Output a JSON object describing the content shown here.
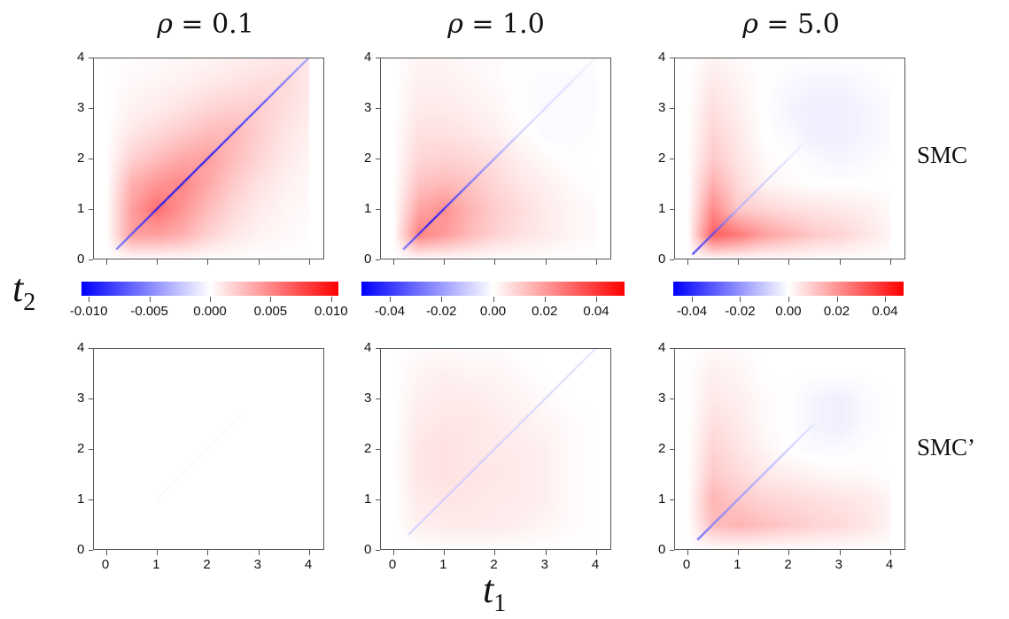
{
  "row_labels": [
    "SMC",
    "SMC’"
  ],
  "axis_labels": {
    "x": "t",
    "x_sub": "1",
    "y": "t",
    "y_sub": "2"
  },
  "colors": {
    "negative": "#0000ff",
    "zero": "#ffffff",
    "positive": "#ff0000",
    "frame": "#555555"
  },
  "colorbars": [
    {
      "range": [
        -0.0106,
        0.0106
      ],
      "ticks": [
        -0.01,
        -0.005,
        0,
        0.005,
        0.01
      ],
      "tick_labels": [
        "-0.010",
        "-0.005",
        "0.000",
        "0.005",
        "0.010"
      ]
    },
    {
      "range": [
        -0.051,
        0.051
      ],
      "ticks": [
        -0.04,
        -0.02,
        0,
        0.02,
        0.04
      ],
      "tick_labels": [
        "-0.04",
        "-0.02",
        "0.00",
        "0.02",
        "0.04"
      ]
    },
    {
      "range": [
        -0.0477,
        0.0477
      ],
      "ticks": [
        -0.04,
        -0.02,
        0,
        0.02,
        0.04
      ],
      "tick_labels": [
        "-0.04",
        "-0.02",
        "0.00",
        "0.02",
        "0.04"
      ]
    }
  ],
  "columns": [
    {
      "rho_symbol": "ρ",
      "rho_text": " = 0.1"
    },
    {
      "rho_symbol": "ρ",
      "rho_text": " = 1.0"
    },
    {
      "rho_symbol": "ρ",
      "rho_text": " = 5.0"
    }
  ],
  "chart_data": [
    {
      "type": "heatmap",
      "row": "SMC",
      "rho": 0.1,
      "col": 0,
      "xlim": [
        -0.26,
        4.3
      ],
      "ylim": [
        0,
        4
      ],
      "xticks": [
        0,
        1,
        2,
        3,
        4
      ],
      "xtick_labels": [],
      "yticks": [
        0,
        1,
        2,
        3,
        4
      ],
      "ytick_labels": [
        "0",
        "1",
        "2",
        "3",
        "4"
      ],
      "grid_t": [
        0,
        0.5,
        1,
        1.5,
        2,
        2.5,
        3,
        3.5,
        4
      ],
      "values": [
        [
          0,
          0,
          0,
          0,
          0,
          0,
          0,
          0,
          0
        ],
        [
          0,
          0.004,
          0.004,
          0.0033,
          0.0019,
          0.001,
          0.0005,
          0.0003,
          0.0001
        ],
        [
          0,
          0.004,
          0.006,
          0.0044,
          0.0028,
          0.0016,
          0.0008,
          0.0004,
          0.0002
        ],
        [
          0,
          0.0033,
          0.0044,
          0.005,
          0.0036,
          0.0022,
          0.0012,
          0.0006,
          0.0003
        ],
        [
          0,
          0.0019,
          0.0028,
          0.0036,
          0.004,
          0.0028,
          0.0017,
          0.0009,
          0.0004
        ],
        [
          0,
          0.001,
          0.0016,
          0.0022,
          0.0028,
          0.003,
          0.002,
          0.0011,
          0.0006
        ],
        [
          0,
          0.0005,
          0.0008,
          0.0012,
          0.0017,
          0.002,
          0.002,
          0.0014,
          0.0008
        ],
        [
          0,
          0.0003,
          0.0004,
          0.0006,
          0.0009,
          0.0011,
          0.0014,
          0.0015,
          0.001
        ],
        [
          0,
          0.0001,
          0.0002,
          0.0003,
          0.0004,
          0.0006,
          0.0008,
          0.001,
          0.001
        ]
      ],
      "diagonal": {
        "t": [
          0.2,
          1,
          2,
          3,
          4
        ],
        "values": [
          -0.006,
          -0.01,
          -0.01,
          -0.008,
          -0.004
        ]
      }
    },
    {
      "type": "heatmap",
      "row": "SMC",
      "rho": 1.0,
      "col": 1,
      "xlim": [
        -0.26,
        4.3
      ],
      "ylim": [
        0,
        4
      ],
      "xticks": [
        0,
        1,
        2,
        3,
        4
      ],
      "xtick_labels": [],
      "yticks": [
        0,
        1,
        2,
        3,
        4
      ],
      "ytick_labels": [
        "0",
        "1",
        "2",
        "3",
        "4"
      ],
      "grid_t": [
        0,
        0.5,
        1,
        1.5,
        2,
        2.5,
        3,
        3.5,
        4
      ],
      "values": [
        [
          0,
          0,
          0,
          0,
          0,
          0,
          0,
          0,
          0
        ],
        [
          0,
          0.025,
          0.02,
          0.014,
          0.009,
          0.006,
          0.004,
          0.002,
          0.001
        ],
        [
          0,
          0.018,
          0.022,
          0.015,
          0.01,
          0.007,
          0.004,
          0.002,
          0.001
        ],
        [
          0,
          0.012,
          0.014,
          0.012,
          0.008,
          0.005,
          0.003,
          0.001,
          0
        ],
        [
          0,
          0.008,
          0.009,
          0.008,
          0.006,
          0.003,
          0.001,
          0,
          0
        ],
        [
          0,
          0.006,
          0.006,
          0.005,
          0.003,
          0.001,
          -0.001,
          -0.001,
          0
        ],
        [
          0,
          0.004,
          0.004,
          0.003,
          0.002,
          0,
          -0.001,
          -0.001,
          -0.001
        ],
        [
          0,
          0.003,
          0.003,
          0.002,
          0.001,
          0,
          -0.001,
          -0.001,
          -0.001
        ],
        [
          0,
          0.002,
          0.002,
          0.001,
          0.001,
          0,
          0,
          0,
          0
        ]
      ],
      "diagonal": {
        "t": [
          0.2,
          0.75,
          1.5,
          2.5,
          4
        ],
        "values": [
          -0.03,
          -0.05,
          -0.03,
          -0.01,
          -0.003
        ]
      }
    },
    {
      "type": "heatmap",
      "row": "SMC",
      "rho": 5.0,
      "col": 2,
      "xlim": [
        -0.26,
        4.3
      ],
      "ylim": [
        0,
        4
      ],
      "xticks": [
        0,
        1,
        2,
        3,
        4
      ],
      "xtick_labels": [],
      "yticks": [
        0,
        1,
        2,
        3,
        4
      ],
      "ytick_labels": [
        "0",
        "1",
        "2",
        "3",
        "4"
      ],
      "grid_t": [
        0,
        0.5,
        1,
        1.5,
        2,
        2.5,
        3,
        3.5,
        4
      ],
      "values": [
        [
          0,
          0,
          0,
          0,
          0,
          0,
          0,
          0,
          0
        ],
        [
          0,
          0.03,
          0.025,
          0.018,
          0.014,
          0.01,
          0.008,
          0.005,
          0.002
        ],
        [
          0,
          0.022,
          0.01,
          0.008,
          0.006,
          0.005,
          0.004,
          0.003,
          0.001
        ],
        [
          0,
          0.015,
          0.007,
          0.002,
          0.001,
          0,
          0,
          0,
          0
        ],
        [
          0,
          0.01,
          0.005,
          0.001,
          0,
          -0.001,
          -0.002,
          -0.001,
          0
        ],
        [
          0,
          0.008,
          0.004,
          0,
          -0.001,
          -0.003,
          -0.003,
          -0.002,
          -0.001
        ],
        [
          0,
          0.006,
          0.003,
          0,
          -0.002,
          -0.003,
          -0.003,
          -0.002,
          -0.001
        ],
        [
          0,
          0.004,
          0.002,
          0,
          -0.001,
          -0.002,
          -0.002,
          -0.001,
          0
        ],
        [
          0,
          0.002,
          0.001,
          0,
          0,
          0,
          0,
          0,
          0
        ]
      ],
      "diagonal": {
        "t": [
          0.1,
          0.5,
          1,
          2,
          2.5
        ],
        "values": [
          -0.04,
          -0.035,
          -0.015,
          -0.005,
          -0.002
        ]
      }
    },
    {
      "type": "heatmap",
      "row": "SMC’",
      "rho": 0.1,
      "col": 0,
      "xlim": [
        -0.26,
        4.3
      ],
      "ylim": [
        0,
        4
      ],
      "xticks": [
        0,
        1,
        2,
        3,
        4
      ],
      "xtick_labels": [
        "0",
        "1",
        "2",
        "3",
        "4"
      ],
      "yticks": [
        0,
        1,
        2,
        3,
        4
      ],
      "ytick_labels": [
        "0",
        "1",
        "2",
        "3",
        "4"
      ],
      "grid_t": [
        0,
        0.5,
        1,
        1.5,
        2,
        2.5,
        3,
        3.5,
        4
      ],
      "values": [
        [
          0,
          0,
          0,
          0,
          0,
          0,
          0,
          0,
          0
        ],
        [
          0,
          0,
          0,
          0,
          0,
          0,
          0,
          0,
          0
        ],
        [
          0,
          0,
          0,
          0,
          0,
          0,
          0,
          0,
          0
        ],
        [
          0,
          0,
          0,
          0,
          0,
          0,
          0,
          0,
          0
        ],
        [
          0,
          0,
          0,
          0,
          0,
          0,
          0,
          0,
          0
        ],
        [
          0,
          0,
          0,
          0,
          0,
          0,
          0,
          0,
          0
        ],
        [
          0,
          0,
          0,
          0,
          0,
          0,
          0,
          0,
          0
        ],
        [
          0,
          0,
          0,
          0,
          0,
          0,
          0,
          0,
          0
        ],
        [
          0,
          0,
          0,
          0,
          0,
          0,
          0,
          0,
          0
        ]
      ],
      "diagonal": {
        "t": [
          1,
          2.7
        ],
        "values": [
          -0.0003,
          -0.0003
        ]
      }
    },
    {
      "type": "heatmap",
      "row": "SMC’",
      "rho": 1.0,
      "col": 1,
      "xlim": [
        -0.26,
        4.3
      ],
      "ylim": [
        0,
        4
      ],
      "xticks": [
        0,
        1,
        2,
        3,
        4
      ],
      "xtick_labels": [
        "0",
        "1",
        "2",
        "3",
        "4"
      ],
      "yticks": [
        0,
        1,
        2,
        3,
        4
      ],
      "ytick_labels": [
        "0",
        "1",
        "2",
        "3",
        "4"
      ],
      "grid_t": [
        0,
        0.5,
        1,
        1.5,
        2,
        2.5,
        3,
        3.5,
        4
      ],
      "values": [
        [
          0,
          0,
          0,
          0,
          0,
          0,
          0,
          0,
          0
        ],
        [
          0,
          0.003,
          0.004,
          0.004,
          0.004,
          0.003,
          0.002,
          0.001,
          0
        ],
        [
          0,
          0.004,
          0.005,
          0.005,
          0.004,
          0.004,
          0.003,
          0.001,
          0
        ],
        [
          0,
          0.005,
          0.006,
          0.005,
          0.005,
          0.004,
          0.003,
          0.001,
          0
        ],
        [
          0,
          0.005,
          0.006,
          0.005,
          0.004,
          0.004,
          0.003,
          0.001,
          0
        ],
        [
          0,
          0.004,
          0.005,
          0.005,
          0.004,
          0.003,
          0.002,
          0.001,
          0
        ],
        [
          0,
          0.003,
          0.004,
          0.004,
          0.003,
          0.002,
          0.001,
          0,
          0
        ],
        [
          0,
          0.002,
          0.003,
          0.002,
          0.002,
          0.001,
          0,
          0,
          0
        ],
        [
          0,
          0.001,
          0.001,
          0.001,
          0.001,
          0,
          0,
          0,
          0
        ]
      ],
      "diagonal": {
        "t": [
          0.3,
          2,
          4
        ],
        "values": [
          -0.01,
          -0.01,
          -0.006
        ]
      }
    },
    {
      "type": "heatmap",
      "row": "SMC’",
      "rho": 5.0,
      "col": 2,
      "xlim": [
        -0.26,
        4.3
      ],
      "ylim": [
        0,
        4
      ],
      "xticks": [
        0,
        1,
        2,
        3,
        4
      ],
      "xtick_labels": [
        "0",
        "1",
        "2",
        "3",
        "4"
      ],
      "yticks": [
        0,
        1,
        2,
        3,
        4
      ],
      "ytick_labels": [
        "0",
        "1",
        "2",
        "3",
        "4"
      ],
      "grid_t": [
        0,
        0.5,
        1,
        1.5,
        2,
        2.5,
        3,
        3.5,
        4
      ],
      "values": [
        [
          0,
          0,
          0,
          0,
          0,
          0,
          0,
          0,
          0
        ],
        [
          0,
          0.012,
          0.014,
          0.012,
          0.01,
          0.008,
          0.007,
          0.005,
          0.002
        ],
        [
          0,
          0.014,
          0.01,
          0.008,
          0.007,
          0.006,
          0.005,
          0.004,
          0.002
        ],
        [
          0,
          0.01,
          0.007,
          0.004,
          0.003,
          0.002,
          0.001,
          0.001,
          0
        ],
        [
          0,
          0.008,
          0.005,
          0.002,
          0,
          -0.001,
          -0.001,
          0,
          0
        ],
        [
          0,
          0.006,
          0.004,
          0.001,
          0,
          -0.002,
          -0.003,
          -0.001,
          0
        ],
        [
          0,
          0.004,
          0.003,
          0.001,
          0,
          -0.002,
          -0.003,
          -0.001,
          0
        ],
        [
          0,
          0.003,
          0.002,
          0,
          0,
          0,
          0,
          0,
          0
        ],
        [
          0,
          0.001,
          0.001,
          0,
          0,
          0,
          0,
          0,
          0
        ]
      ],
      "diagonal": {
        "t": [
          0.2,
          1,
          2,
          2.5
        ],
        "values": [
          -0.03,
          -0.02,
          -0.01,
          -0.005
        ]
      }
    }
  ]
}
